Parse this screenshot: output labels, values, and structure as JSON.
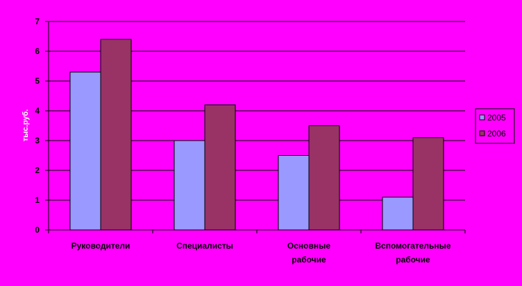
{
  "chart_data": {
    "type": "bar",
    "title": "",
    "xlabel": "",
    "ylabel": "тыс.руб.",
    "ylim": [
      0,
      7
    ],
    "yticks": [
      "0",
      "1",
      "2",
      "3",
      "4",
      "5",
      "6",
      "7"
    ],
    "grid": true,
    "legend_position": "right",
    "categories": [
      [
        "Руководители"
      ],
      [
        "Специалисты"
      ],
      [
        "Основные",
        "рабочие"
      ],
      [
        "Вспомогательные",
        "рабочие"
      ]
    ],
    "series": [
      {
        "name": "2005",
        "values": [
          5.3,
          3.0,
          2.5,
          1.1
        ],
        "color": "#9999ff"
      },
      {
        "name": "2006",
        "values": [
          6.4,
          4.2,
          3.5,
          3.1
        ],
        "color": "#993366"
      }
    ]
  },
  "colors": {
    "background": "#ff00ff",
    "plot_area": "#ff00ff",
    "gridline": "#000000",
    "legend_background": "#ff00ff"
  }
}
